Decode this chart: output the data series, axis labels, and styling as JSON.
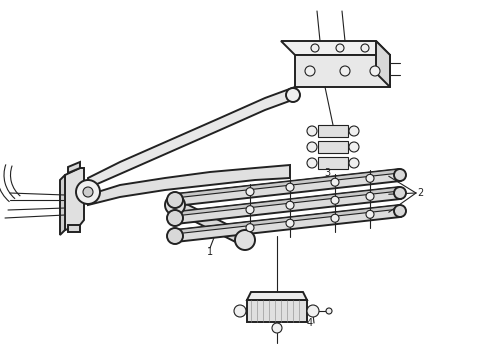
{
  "bg_color": "#ffffff",
  "line_color": "#222222",
  "lw_main": 1.4,
  "lw_thin": 0.8,
  "fig_w": 4.9,
  "fig_h": 3.6,
  "dpi": 100
}
